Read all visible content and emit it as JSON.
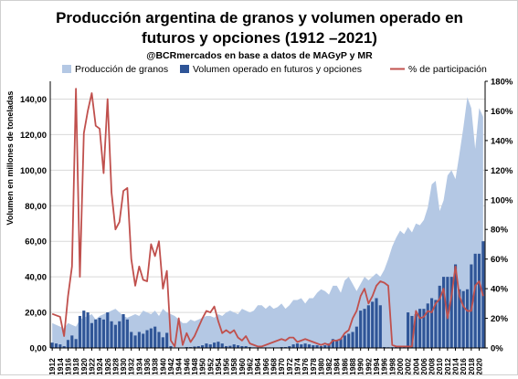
{
  "chart_data": {
    "type": "bar",
    "title_line1": "Producción argentina de granos y volumen operado en",
    "title_line2": "futuros y opciones (1912 –2021)",
    "subtitle": "@BCRmercados en base a datos de MAGyP y MR",
    "ylabel": "Volumen en millones de toneladas",
    "y2label": "",
    "ylim": [
      0,
      150
    ],
    "y2lim": [
      0,
      180
    ],
    "yticks": [
      0,
      20,
      40,
      60,
      80,
      100,
      120,
      140
    ],
    "yticks_display": [
      "0,00",
      "20,00",
      "40,00",
      "60,00",
      "80,00",
      "100,00",
      "120,00",
      "140,00"
    ],
    "y2ticks": [
      0,
      20,
      40,
      60,
      80,
      100,
      120,
      140,
      160,
      180
    ],
    "y2ticks_display": [
      "0%",
      "20%",
      "40%",
      "60%",
      "80%",
      "100%",
      "120%",
      "140%",
      "160%",
      "180%"
    ],
    "x_start": 1912,
    "x_end": 2021,
    "xtick_labels": [
      "1912",
      "1914",
      "1916",
      "1918",
      "1920",
      "1922",
      "1924",
      "1926",
      "1928",
      "1930",
      "1932",
      "1934",
      "1936",
      "1938",
      "1940",
      "1942",
      "1944",
      "1946",
      "1948",
      "1950",
      "1952",
      "1954",
      "1956",
      "1958",
      "1960",
      "1962",
      "1964",
      "1966",
      "1968",
      "1970",
      "1972",
      "1974",
      "1976",
      "1978",
      "1980",
      "1982",
      "1984",
      "1986",
      "1988",
      "1990",
      "1992",
      "1994",
      "1996",
      "1998",
      "2000",
      "2002",
      "2004",
      "2006",
      "2008",
      "2010",
      "2012",
      "2014",
      "2016",
      "2018",
      "2020"
    ],
    "grid": true,
    "legend_position": "top",
    "colors": {
      "production": "#b4c8e4",
      "volume": "#2f5597",
      "share": "#c0504d"
    },
    "series": [
      {
        "name": "Producción de granos",
        "kind": "area",
        "axis": "left",
        "values": [
          14,
          13,
          12,
          11,
          14,
          13,
          12,
          16,
          17,
          18,
          19,
          16,
          18,
          19,
          20,
          21,
          22,
          20,
          18,
          17,
          18,
          19,
          18,
          21,
          20,
          19,
          21,
          18,
          22,
          20,
          19,
          18,
          16,
          14,
          14,
          16,
          15,
          16,
          17,
          18,
          18,
          17,
          19,
          18,
          20,
          21,
          20,
          19,
          22,
          21,
          20,
          21,
          24,
          24,
          22,
          24,
          22,
          23,
          25,
          22,
          24,
          27,
          27,
          28,
          25,
          28,
          28,
          31,
          33,
          32,
          30,
          35,
          35,
          31,
          38,
          40,
          36,
          32,
          36,
          40,
          38,
          40,
          42,
          40,
          44,
          50,
          57,
          62,
          66,
          64,
          68,
          65,
          70,
          69,
          72,
          79,
          92,
          94,
          77,
          83,
          97,
          100,
          95,
          109,
          124,
          141,
          135,
          112,
          135,
          130
        ]
      },
      {
        "name": "Volumen operado en futuros y opciones",
        "kind": "bar",
        "axis": "left",
        "values": [
          3,
          2.5,
          2,
          1,
          4.5,
          7,
          5,
          18,
          21,
          20,
          14,
          16,
          17,
          16,
          20,
          15,
          13,
          15,
          19,
          16,
          9,
          7,
          9,
          8,
          10,
          11,
          12,
          9,
          6,
          8.5,
          1,
          0.3,
          0,
          0.2,
          0.5,
          0.5,
          0.8,
          1,
          1.5,
          2.5,
          2,
          3,
          3.5,
          2.5,
          1,
          1.2,
          2,
          1.5,
          1,
          1,
          0.5,
          0.3,
          0.3,
          0.3,
          0.3,
          0.3,
          0.3,
          0.3,
          0.5,
          0.5,
          1,
          2,
          2.5,
          2,
          2.5,
          2,
          1.5,
          1.5,
          1,
          1.5,
          2.5,
          5,
          4.5,
          5,
          7,
          8,
          9,
          12,
          21,
          22,
          24,
          26,
          28,
          24,
          0.5,
          0.4,
          0.4,
          0.5,
          0.5,
          1,
          20,
          18,
          19,
          22,
          22,
          25,
          28,
          27,
          35,
          40,
          40,
          40,
          47,
          33,
          32,
          33,
          47,
          53,
          53,
          60
        ]
      },
      {
        "name": "% de participación",
        "kind": "line",
        "axis": "right",
        "values": [
          23,
          22,
          21,
          8,
          35,
          55,
          175,
          48,
          145,
          160,
          172,
          150,
          148,
          118,
          168,
          105,
          80,
          85,
          106,
          108,
          60,
          42,
          55,
          46,
          45,
          70,
          62,
          72,
          40,
          52,
          5,
          1,
          20,
          2,
          10,
          4,
          8,
          14,
          20,
          25,
          24,
          28,
          18,
          10,
          12,
          10,
          12,
          7,
          5,
          8,
          3,
          2,
          1,
          1,
          2,
          3,
          4,
          5,
          6,
          5,
          7,
          7,
          4,
          5,
          6,
          5,
          4,
          3,
          2,
          3,
          2,
          5,
          5,
          6,
          10,
          12,
          20,
          25,
          35,
          40,
          30,
          35,
          42,
          45,
          44,
          42,
          2,
          1,
          1,
          1,
          1,
          1,
          25,
          20,
          21,
          25,
          24,
          30,
          33,
          40,
          20,
          35,
          55,
          35,
          28,
          25,
          25,
          42,
          45,
          35
        ]
      }
    ]
  }
}
